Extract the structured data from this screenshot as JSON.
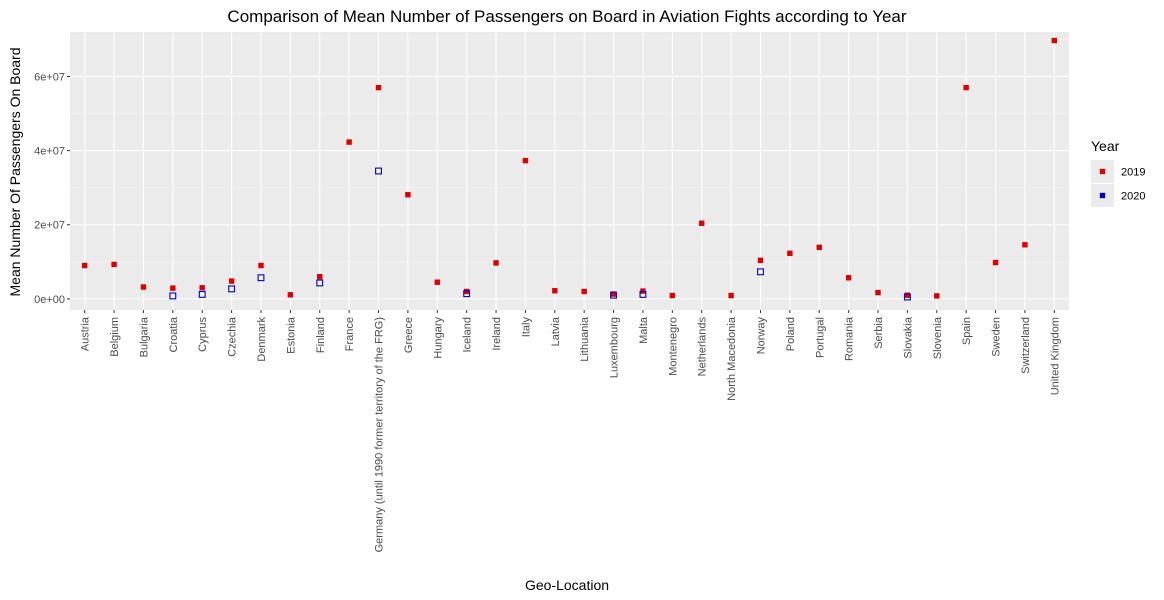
{
  "chart_data": {
    "type": "scatter",
    "title": "Comparison of Mean Number of Passengers on Board in Aviation Fights according to Year",
    "xlabel": "Geo-Location",
    "ylabel": "Mean Number Of Passengers On Board",
    "ylim": [
      -3000000,
      72000000
    ],
    "yticks": [
      {
        "value": 0,
        "label": "0e+00"
      },
      {
        "value": 20000000,
        "label": "2e+07"
      },
      {
        "value": 40000000,
        "label": "4e+07"
      },
      {
        "value": 60000000,
        "label": "6e+07"
      }
    ],
    "grid": true,
    "legend": {
      "title": "Year",
      "position": "right"
    },
    "categories": [
      "Austria",
      "Belgium",
      "Bulgaria",
      "Croatia",
      "Cyprus",
      "Czechia",
      "Denmark",
      "Estonia",
      "Finland",
      "France",
      "Germany (until 1990 former territory of the FRG)",
      "Greece",
      "Hungary",
      "Iceland",
      "Ireland",
      "Italy",
      "Latvia",
      "Lithuania",
      "Luxembourg",
      "Malta",
      "Montenegro",
      "Netherlands",
      "North Macedonia",
      "Norway",
      "Poland",
      "Portugal",
      "Romania",
      "Serbia",
      "Slovakia",
      "Slovenia",
      "Spain",
      "Sweden",
      "Switzerland",
      "United Kingdom"
    ],
    "series": [
      {
        "name": "2019",
        "color": "#e00000",
        "marker": "filled-square",
        "values": [
          9000000,
          9300000,
          3200000,
          2900000,
          3000000,
          4800000,
          9000000,
          1100000,
          6000000,
          42300000,
          57000000,
          28100000,
          4500000,
          2000000,
          9700000,
          37300000,
          2200000,
          2000000,
          1300000,
          2100000,
          900000,
          20400000,
          900000,
          10400000,
          12300000,
          13900000,
          5700000,
          1700000,
          1000000,
          800000,
          57000000,
          9800000,
          14600000,
          69700000
        ]
      },
      {
        "name": "2020",
        "color": "#0000cc",
        "marker": "open-square",
        "values": [
          null,
          null,
          null,
          800000,
          1200000,
          2700000,
          5700000,
          null,
          4300000,
          null,
          34500000,
          null,
          null,
          1400000,
          null,
          null,
          null,
          null,
          1000000,
          1200000,
          null,
          null,
          null,
          7300000,
          null,
          null,
          null,
          null,
          500000,
          null,
          null,
          null,
          null,
          null
        ]
      }
    ]
  }
}
